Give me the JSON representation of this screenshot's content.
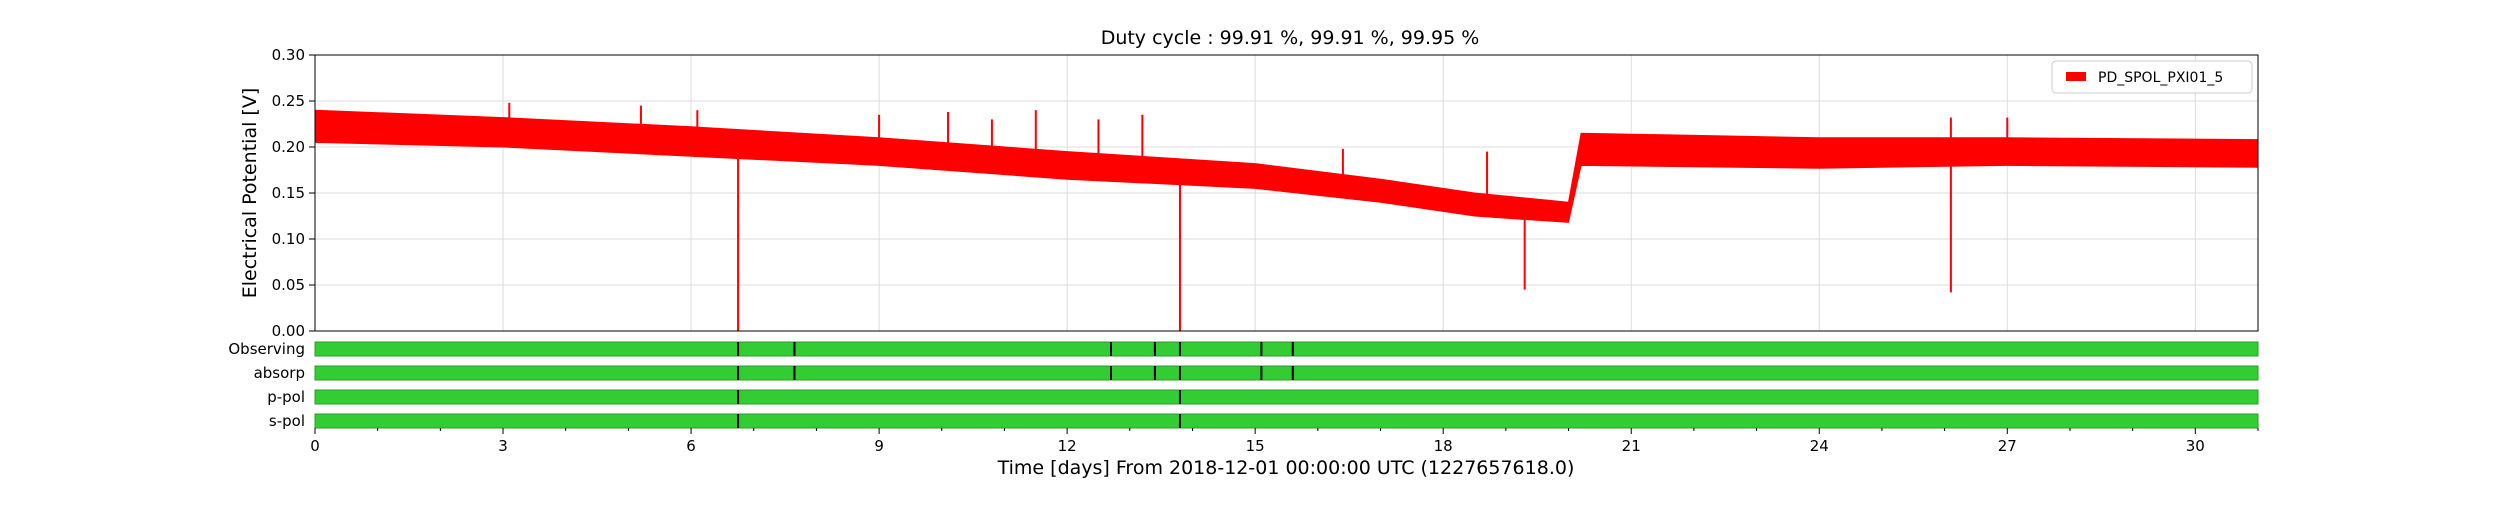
{
  "chart_data": {
    "type": "line",
    "title": "Duty cycle : 99.91 %, 99.91 %, 99.95 %",
    "xlabel": "Time [days] From 2018-12-01 00:00:00 UTC (1227657618.0)",
    "ylabel": "Electrical Potential [V]",
    "xlim": [
      0,
      31
    ],
    "ylim": [
      0,
      0.3
    ],
    "xticks": [
      "0",
      "3",
      "6",
      "9",
      "12",
      "15",
      "18",
      "21",
      "24",
      "27",
      "30"
    ],
    "yticks": [
      "0.00",
      "0.05",
      "0.10",
      "0.15",
      "0.20",
      "0.25",
      "0.30"
    ],
    "grid": true,
    "legend_position": "top-right",
    "colors": {
      "series": "#ff0000",
      "segment": "#33cc33",
      "gap": "#000000"
    },
    "series": [
      {
        "name": "PD_SPOL_PXI01_5",
        "band": [
          {
            "x": 0.0,
            "lo": 0.205,
            "hi": 0.24
          },
          {
            "x": 3.0,
            "lo": 0.2,
            "hi": 0.232
          },
          {
            "x": 6.0,
            "lo": 0.19,
            "hi": 0.222
          },
          {
            "x": 9.0,
            "lo": 0.18,
            "hi": 0.21
          },
          {
            "x": 12.0,
            "lo": 0.165,
            "hi": 0.195
          },
          {
            "x": 15.0,
            "lo": 0.155,
            "hi": 0.182
          },
          {
            "x": 17.0,
            "lo": 0.14,
            "hi": 0.165
          },
          {
            "x": 18.5,
            "lo": 0.125,
            "hi": 0.15
          },
          {
            "x": 20.0,
            "lo": 0.118,
            "hi": 0.14
          },
          {
            "x": 20.2,
            "lo": 0.18,
            "hi": 0.215
          },
          {
            "x": 24.0,
            "lo": 0.177,
            "hi": 0.21
          },
          {
            "x": 27.0,
            "lo": 0.18,
            "hi": 0.21
          },
          {
            "x": 31.0,
            "lo": 0.178,
            "hi": 0.208
          }
        ],
        "spikes": [
          {
            "x": 3.1,
            "y": 0.248
          },
          {
            "x": 5.2,
            "y": 0.245
          },
          {
            "x": 6.1,
            "y": 0.24
          },
          {
            "x": 6.75,
            "y": 0.0
          },
          {
            "x": 9.0,
            "y": 0.235
          },
          {
            "x": 10.1,
            "y": 0.238
          },
          {
            "x": 10.8,
            "y": 0.23
          },
          {
            "x": 11.5,
            "y": 0.24
          },
          {
            "x": 12.5,
            "y": 0.23
          },
          {
            "x": 13.2,
            "y": 0.235
          },
          {
            "x": 13.8,
            "y": 0.0
          },
          {
            "x": 16.4,
            "y": 0.198
          },
          {
            "x": 18.7,
            "y": 0.195
          },
          {
            "x": 19.3,
            "y": 0.045
          },
          {
            "x": 26.1,
            "y": 0.042
          },
          {
            "x": 26.1,
            "y": 0.232
          },
          {
            "x": 27.0,
            "y": 0.232
          }
        ]
      }
    ],
    "segments": [
      {
        "name": "Observing",
        "gaps": [
          6.75,
          7.65,
          12.7,
          13.4,
          13.8,
          15.1,
          15.6
        ]
      },
      {
        "name": "absorp",
        "gaps": [
          6.75,
          7.65,
          12.7,
          13.4,
          13.8,
          15.1,
          15.6
        ]
      },
      {
        "name": "p-pol",
        "gaps": [
          6.75,
          13.8
        ]
      },
      {
        "name": "s-pol",
        "gaps": [
          6.75,
          13.8
        ]
      }
    ]
  }
}
